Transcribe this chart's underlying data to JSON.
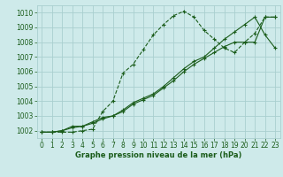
{
  "title": "Graphe pression niveau de la mer (hPa)",
  "bg_color": "#ceeaea",
  "grid_color": "#aacfcf",
  "line_color": "#1a5c1a",
  "ylim": [
    1001.5,
    1010.5
  ],
  "xlim": [
    -0.5,
    23.5
  ],
  "yticks": [
    1002,
    1003,
    1004,
    1005,
    1006,
    1007,
    1008,
    1009,
    1010
  ],
  "xticks": [
    0,
    1,
    2,
    3,
    4,
    5,
    6,
    7,
    8,
    9,
    10,
    11,
    12,
    13,
    14,
    15,
    16,
    17,
    18,
    19,
    20,
    21,
    22,
    23
  ],
  "series": [
    [
      1001.9,
      1001.9,
      1001.9,
      1001.9,
      1002.0,
      1002.1,
      1003.3,
      1004.0,
      1005.9,
      1006.5,
      1007.5,
      1008.5,
      1009.2,
      1009.8,
      1010.1,
      1009.7,
      1008.8,
      1008.2,
      1007.6,
      1007.3,
      1008.0,
      1008.6,
      1009.7,
      1009.7
    ],
    [
      1001.9,
      1001.9,
      1002.0,
      1002.3,
      1002.3,
      1002.6,
      1002.9,
      1003.0,
      1003.4,
      1003.9,
      1004.2,
      1004.5,
      1005.0,
      1005.6,
      1006.2,
      1006.7,
      1007.0,
      1007.6,
      1008.2,
      1008.7,
      1009.2,
      1009.7,
      1008.5,
      1007.6
    ],
    [
      1001.9,
      1001.9,
      1002.0,
      1002.2,
      1002.3,
      1002.5,
      1002.8,
      1003.0,
      1003.3,
      1003.8,
      1004.1,
      1004.4,
      1004.9,
      1005.4,
      1006.0,
      1006.5,
      1006.9,
      1007.3,
      1007.7,
      1008.0,
      1008.0,
      1008.0,
      1009.7,
      1009.7
    ]
  ],
  "line_styles": [
    "-",
    "-",
    "-"
  ],
  "tick_fontsize": 5.5,
  "title_fontsize": 6.0
}
